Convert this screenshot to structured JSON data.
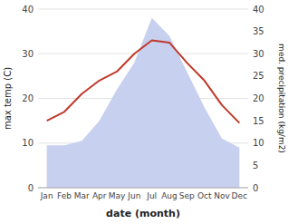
{
  "chart_data": {
    "type": "line",
    "categories": [
      "Jan",
      "Feb",
      "Mar",
      "Apr",
      "May",
      "Jun",
      "Jul",
      "Aug",
      "Sep",
      "Oct",
      "Nov",
      "Dec"
    ],
    "series": [
      {
        "type": "area",
        "axis": "y2",
        "color": "#c8d0f0",
        "values": [
          9.5,
          9.5,
          10.5,
          15.0,
          22.0,
          28.0,
          38.0,
          34.0,
          26.0,
          18.0,
          11.0,
          9.0
        ]
      },
      {
        "type": "line",
        "color": "#c0392b",
        "values": [
          15.0,
          17.0,
          21.0,
          24.0,
          26.0,
          30.0,
          33.0,
          32.5,
          28.0,
          24.0,
          18.5,
          14.5
        ]
      }
    ],
    "xlabel": "date (month)",
    "ylabel": "max temp (C)",
    "y2label": "med. precipitation (kg/m2)",
    "ylim": [
      0,
      40
    ],
    "yticks": [
      0,
      10,
      20,
      30,
      40
    ],
    "y2lim": [
      0,
      40
    ],
    "y2ticks": [
      0,
      5,
      10,
      15,
      20,
      25,
      30,
      35,
      40
    ],
    "grid": true
  }
}
